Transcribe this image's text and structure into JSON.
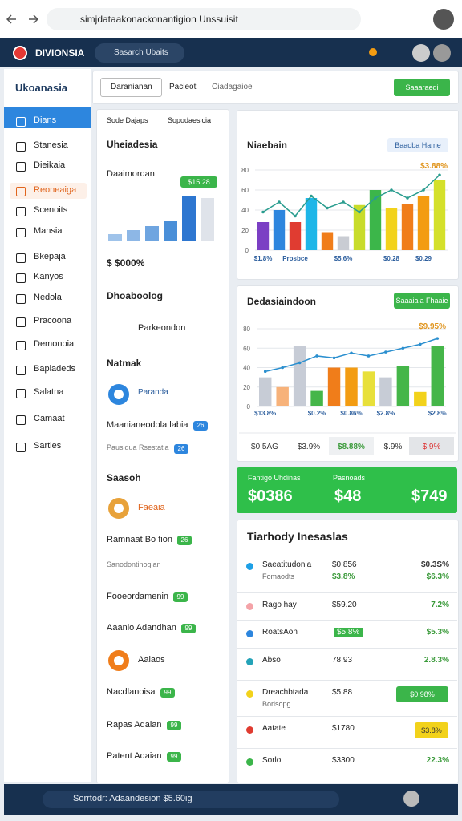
{
  "browser": {
    "url": "simjdataakonackonantigion Unssuisit"
  },
  "header": {
    "logo": "DIVIONSIA",
    "search": "Sasarch Ubaits"
  },
  "sidebar": {
    "brand": "Ukoanasia",
    "items": [
      "Dians",
      "Stanesia",
      "Dieikaia",
      "Reoneaiga",
      "Scenoits",
      "Mansia",
      "Bkepaja",
      "Kanyos",
      "Nedola",
      "Pracoona",
      "Demonoia",
      "Bapladeds",
      "Salatna",
      "Camaat",
      "Sarties"
    ]
  },
  "toolbar": {
    "tabs": [
      "Daranianan",
      "Pacieot",
      "Ciadagaioe"
    ],
    "button": "Saaaraedi"
  },
  "panel": {
    "tabs": [
      "Sode Dajaps",
      "Sopodaesicia"
    ],
    "dropdown": "Uheiadesia",
    "card_title": "Daaimordan",
    "badge": "$15.28",
    "mini_bars": [
      8,
      13,
      18,
      24,
      55,
      53
    ],
    "big_value": "$ $000%",
    "items": [
      "Dhoaboolog",
      "Parkeondon",
      "Natmak",
      "Paranda",
      "Maanianeodola labia",
      "Pausidua Rsestatia",
      "Saasoh",
      "Faeaia",
      "Ramnaat Bo fion",
      "Sanodontinogian",
      "Fooeordamenin",
      "Aaanio Adandhan",
      "Aalaos",
      "Nacdlanoisa",
      "Rapas Adaian",
      "Patent Adaian"
    ],
    "badges": [
      "26",
      "26",
      "26",
      "99",
      "99",
      "99",
      "99",
      "99"
    ]
  },
  "charts": [
    {
      "type": "bar",
      "title": "Niaebain",
      "button": "Baaoba Hame",
      "annotation": "$3.88%",
      "ylim": [
        0,
        80
      ],
      "yticks": [
        0,
        20,
        40,
        60,
        80
      ],
      "grid": true,
      "categories": [
        "$1.8%",
        null,
        "Prosbce",
        null,
        null,
        "$5.6%",
        null,
        null,
        "$0.28",
        null,
        "$0.29",
        null
      ],
      "values": [
        28,
        40,
        28,
        52,
        18,
        14,
        45,
        60,
        42,
        46,
        54,
        70
      ],
      "colors": [
        "#7b3fc4",
        "#2e86de",
        "#e03c31",
        "#1eb6e8",
        "#f07d1a",
        "#c9ccd3",
        "#c8dc2a",
        "#3cb64a",
        "#f2d21b",
        "#f07d1a",
        "#f39c12",
        "#d4e02a"
      ],
      "line": {
        "color": "#2a9d8f",
        "values": [
          38,
          48,
          34,
          54,
          42,
          48,
          38,
          52,
          60,
          52,
          60,
          75
        ]
      }
    },
    {
      "type": "bar",
      "title": "Dedasiaindoon",
      "button": "Saaaiaia Fhaaie",
      "annotation": "$9.95%",
      "ylim": [
        0,
        80
      ],
      "yticks": [
        0,
        20,
        40,
        60,
        80
      ],
      "grid": true,
      "categories": [
        "$13.8%",
        null,
        null,
        "$0.2%",
        null,
        "$0.86%",
        null,
        "$2.8%",
        null,
        null,
        "$2.8%"
      ],
      "values": [
        30,
        20,
        62,
        16,
        40,
        40,
        36,
        30,
        42,
        15,
        62
      ],
      "colors": [
        "#c7ccd6",
        "#f7b27a",
        "#c7ccd6",
        "#45b649",
        "#f07d1a",
        "#f39c12",
        "#e8e03a",
        "#c7ccd6",
        "#45b649",
        "#f2d21b",
        "#45b649"
      ],
      "line": {
        "color": "#2a8fcf",
        "values": [
          36,
          40,
          45,
          52,
          50,
          55,
          52,
          56,
          60,
          64,
          70
        ]
      },
      "summary": [
        "$0.5AG",
        "$3.9%",
        "$8.88%",
        "$.9%",
        "$.9%"
      ]
    }
  ],
  "banner": {
    "labels": [
      "Fantigo Uhdinas",
      "Pasnoads"
    ],
    "values": [
      "$0386",
      "$48",
      "$749"
    ]
  },
  "table": {
    "title": "Tiarhody Inesaslas",
    "rows": [
      {
        "name": "Saeatitudonia",
        "sub": "Fomaodts",
        "value": "$0.856",
        "value_sub": "$3.8%",
        "change": "$0.3S%",
        "change_sub": "$6.3%"
      },
      {
        "name": "Rago hay",
        "value": "$59.20",
        "change": "7.2%"
      },
      {
        "name": "RoatsAon",
        "value": "$5.8%",
        "change": "$5.3%"
      },
      {
        "name": "Abso",
        "value": "78.93",
        "change": "2.8.3%"
      },
      {
        "name": "Dreachbtada",
        "sub": "Borisopg",
        "value": "$5.88",
        "change": "$0.98%"
      },
      {
        "name": "Aatate",
        "value": "$1780",
        "change": "$3.8%"
      },
      {
        "name": "Sorlo",
        "value": "$3300",
        "change": "22.3%"
      }
    ]
  },
  "taskbar": {
    "text": "Sorrtodr: Adaandesion $5.60ig"
  }
}
